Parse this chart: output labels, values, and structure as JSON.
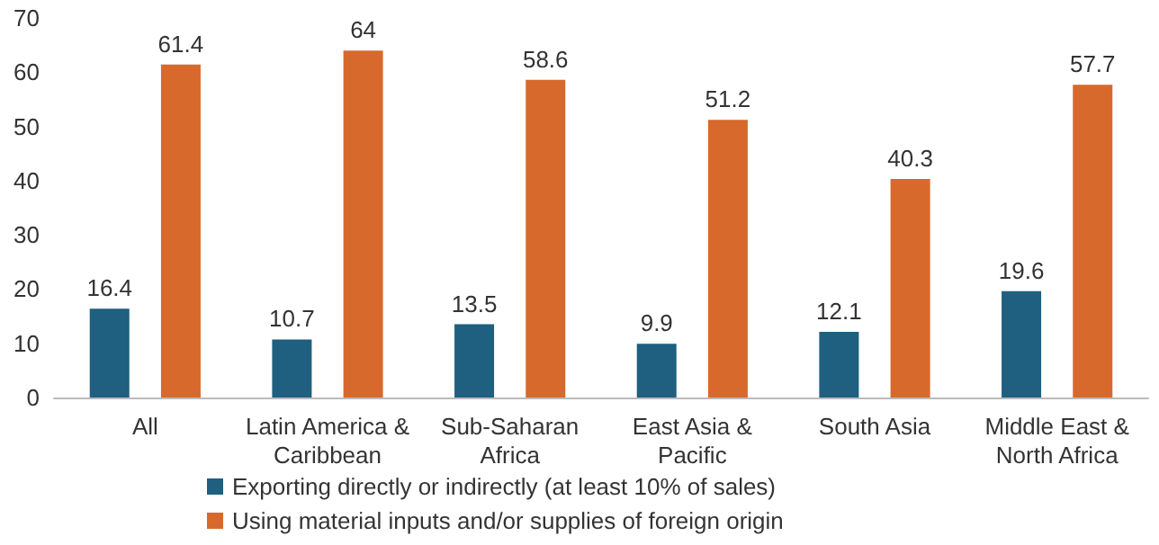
{
  "chart_data": {
    "type": "bar",
    "categories": [
      "All",
      "Latin America &\nCaribbean",
      "Sub-Saharan\nAfrica",
      "East Asia &\nPacific",
      "South Asia",
      "Middle East &\nNorth Africa"
    ],
    "series": [
      {
        "name": "Exporting directly or indirectly (at least 10% of sales)",
        "color": "#1f5f80",
        "values": [
          16.4,
          10.7,
          13.5,
          9.9,
          12.1,
          19.6
        ]
      },
      {
        "name": "Using material inputs and/or supplies of foreign origin",
        "color": "#d8692c",
        "values": [
          61.4,
          64,
          58.6,
          51.2,
          40.3,
          57.7
        ]
      }
    ],
    "ylim": [
      0,
      70
    ],
    "yticks": [
      0,
      10,
      20,
      30,
      40,
      50,
      60,
      70
    ],
    "data_labels": true,
    "grid": false,
    "legend": "bottom"
  }
}
